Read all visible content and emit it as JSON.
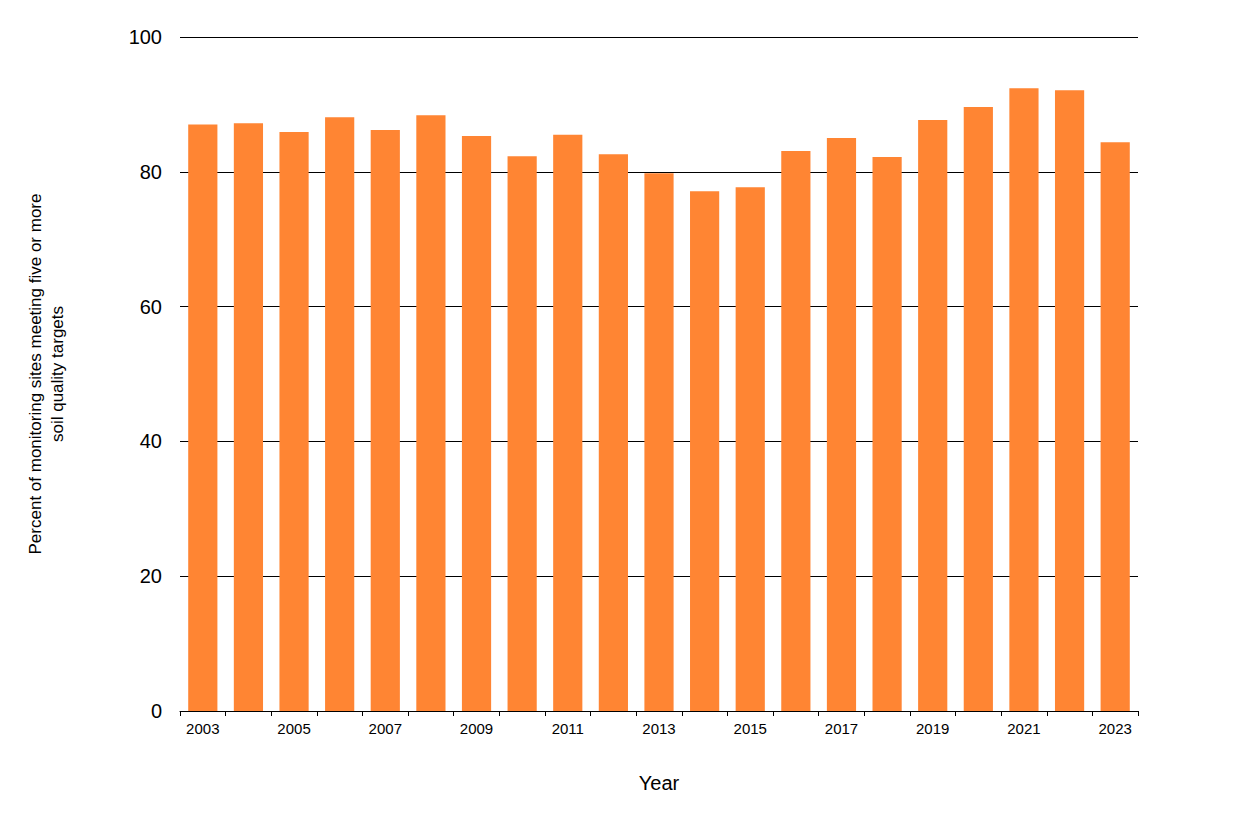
{
  "chart_data": {
    "type": "bar",
    "x_label": "Year",
    "y_label": "Percent of monitoring sites meeting five or more\nsoil quality targets",
    "categories": [
      "2003",
      null,
      "2005",
      null,
      "2007",
      null,
      "2009",
      null,
      "2011",
      null,
      "2013",
      null,
      "2015",
      null,
      "2017",
      null,
      "2019",
      null,
      "2021",
      null,
      "2023"
    ],
    "values": [
      87.0,
      87.2,
      85.9,
      88.1,
      86.2,
      88.4,
      85.3,
      82.3,
      85.5,
      82.6,
      79.8,
      77.1,
      77.7,
      83.1,
      85.0,
      82.2,
      87.7,
      89.6,
      92.4,
      92.1,
      84.4
    ],
    "color": "#ff8533",
    "ylim": [
      0,
      100
    ],
    "yticks": [
      0,
      20,
      40,
      60,
      80,
      100
    ],
    "grid": true
  }
}
